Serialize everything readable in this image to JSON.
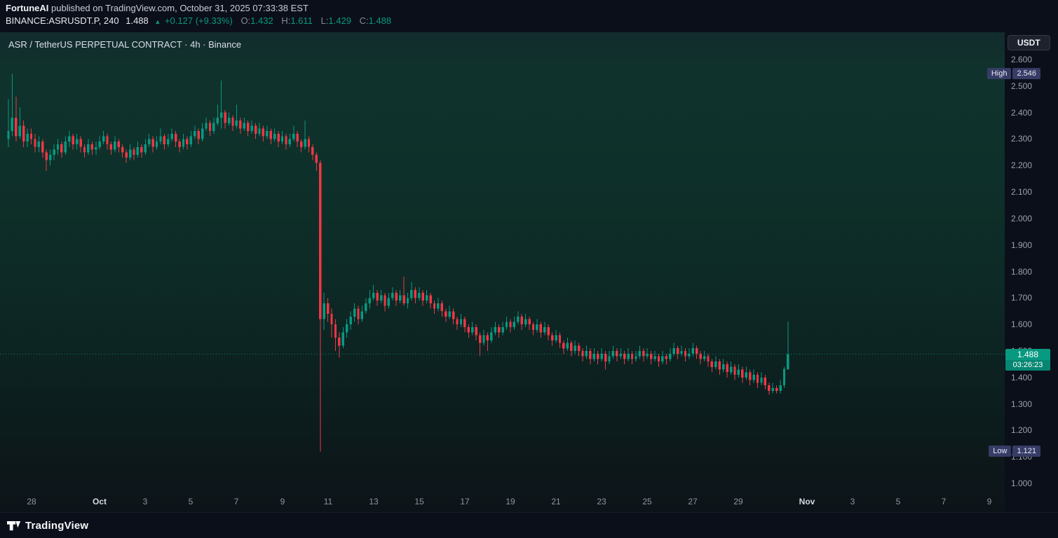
{
  "meta": {
    "publisher": "FortuneAI",
    "published_text": " published on TradingView.com, October 31, 2025 07:33:38 EST"
  },
  "symbol_line": {
    "symbol": "BINANCE:ASRUSDT.P, 240",
    "last": "1.488",
    "arrow": "▲",
    "change": "+0.127 (+9.33%)",
    "ohlc": [
      {
        "label": "O:",
        "value": "1.432"
      },
      {
        "label": "H:",
        "value": "1.611"
      },
      {
        "label": "L:",
        "value": "1.429"
      },
      {
        "label": "C:",
        "value": "1.488"
      }
    ]
  },
  "chart": {
    "title": "ASR / TetherUS PERPETUAL CONTRACT · 4h · Binance",
    "axis_button": "USDT",
    "high_badge": {
      "label": "High",
      "value": "2.546"
    },
    "low_badge": {
      "label": "Low",
      "value": "1.121"
    },
    "last_badge": {
      "price": "1.488",
      "countdown": "03:26:23"
    }
  },
  "footer": {
    "brand": "TradingView"
  },
  "chart_data": {
    "type": "candlestick",
    "symbol": "BINANCE:ASRUSDT.P",
    "exchange": "Binance",
    "interval": "4h",
    "quote": "USDT",
    "last_price": 1.488,
    "range_high": 2.546,
    "range_low": 1.121,
    "ylim": [
      0.966,
      2.703
    ],
    "price_ticks": [
      "2.600",
      "2.500",
      "2.400",
      "2.300",
      "2.200",
      "2.100",
      "2.000",
      "1.900",
      "1.800",
      "1.700",
      "1.600",
      "1.500",
      "1.400",
      "1.300",
      "1.200",
      "1.100",
      "1.000"
    ],
    "time_labels": [
      {
        "text": "28",
        "bar": 6
      },
      {
        "text": "Oct",
        "bar": 24,
        "major": true
      },
      {
        "text": "3",
        "bar": 36
      },
      {
        "text": "5",
        "bar": 48
      },
      {
        "text": "7",
        "bar": 60
      },
      {
        "text": "9",
        "bar": 72
      },
      {
        "text": "11",
        "bar": 84
      },
      {
        "text": "13",
        "bar": 96
      },
      {
        "text": "15",
        "bar": 108
      },
      {
        "text": "17",
        "bar": 120
      },
      {
        "text": "19",
        "bar": 132
      },
      {
        "text": "21",
        "bar": 144
      },
      {
        "text": "23",
        "bar": 156
      },
      {
        "text": "25",
        "bar": 168
      },
      {
        "text": "27",
        "bar": 180
      },
      {
        "text": "29",
        "bar": 192
      },
      {
        "text": "Nov",
        "bar": 210,
        "major": true
      },
      {
        "text": "3",
        "bar": 222
      },
      {
        "text": "5",
        "bar": 234
      },
      {
        "text": "7",
        "bar": 246
      },
      {
        "text": "9",
        "bar": 258
      }
    ],
    "colors": {
      "up": "#089981",
      "down": "#f23645",
      "last_line": "#089981"
    },
    "layout": {
      "left_pad": 12,
      "bar_step": 5.424,
      "total_slots": 262,
      "grid": false,
      "price_axis_side": "right",
      "legend": false
    },
    "ohlc_format": [
      "open",
      "high",
      "low",
      "close"
    ],
    "candles": [
      [
        2.3,
        2.45,
        2.27,
        2.33
      ],
      [
        2.33,
        2.546,
        2.31,
        2.38
      ],
      [
        2.38,
        2.46,
        2.29,
        2.31
      ],
      [
        2.31,
        2.42,
        2.3,
        2.35
      ],
      [
        2.35,
        2.37,
        2.27,
        2.29
      ],
      [
        2.29,
        2.34,
        2.27,
        2.32
      ],
      [
        2.32,
        2.34,
        2.28,
        2.3
      ],
      [
        2.3,
        2.32,
        2.25,
        2.27
      ],
      [
        2.27,
        2.31,
        2.25,
        2.29
      ],
      [
        2.29,
        2.3,
        2.23,
        2.25
      ],
      [
        2.25,
        2.26,
        2.18,
        2.22
      ],
      [
        2.22,
        2.26,
        2.2,
        2.24
      ],
      [
        2.24,
        2.28,
        2.22,
        2.26
      ],
      [
        2.26,
        2.3,
        2.24,
        2.28
      ],
      [
        2.28,
        2.29,
        2.23,
        2.25
      ],
      [
        2.25,
        2.31,
        2.24,
        2.29
      ],
      [
        2.29,
        2.33,
        2.27,
        2.31
      ],
      [
        2.31,
        2.32,
        2.26,
        2.28
      ],
      [
        2.28,
        2.32,
        2.26,
        2.3
      ],
      [
        2.3,
        2.31,
        2.25,
        2.27
      ],
      [
        2.27,
        2.28,
        2.23,
        2.25
      ],
      [
        2.25,
        2.3,
        2.24,
        2.28
      ],
      [
        2.28,
        2.29,
        2.24,
        2.26
      ],
      [
        2.26,
        2.29,
        2.24,
        2.27
      ],
      [
        2.27,
        2.31,
        2.26,
        2.29
      ],
      [
        2.29,
        2.33,
        2.28,
        2.31
      ],
      [
        2.31,
        2.32,
        2.26,
        2.28
      ],
      [
        2.28,
        2.29,
        2.24,
        2.26
      ],
      [
        2.26,
        2.31,
        2.25,
        2.29
      ],
      [
        2.29,
        2.3,
        2.25,
        2.27
      ],
      [
        2.27,
        2.28,
        2.23,
        2.25
      ],
      [
        2.25,
        2.26,
        2.21,
        2.23
      ],
      [
        2.23,
        2.28,
        2.22,
        2.26
      ],
      [
        2.26,
        2.27,
        2.22,
        2.24
      ],
      [
        2.24,
        2.29,
        2.23,
        2.27
      ],
      [
        2.27,
        2.28,
        2.23,
        2.25
      ],
      [
        2.25,
        2.3,
        2.24,
        2.28
      ],
      [
        2.28,
        2.32,
        2.27,
        2.3
      ],
      [
        2.3,
        2.31,
        2.25,
        2.27
      ],
      [
        2.27,
        2.31,
        2.26,
        2.29
      ],
      [
        2.29,
        2.34,
        2.28,
        2.31
      ],
      [
        2.31,
        2.32,
        2.26,
        2.28
      ],
      [
        2.28,
        2.32,
        2.27,
        2.3
      ],
      [
        2.3,
        2.34,
        2.29,
        2.32
      ],
      [
        2.32,
        2.33,
        2.27,
        2.29
      ],
      [
        2.29,
        2.3,
        2.25,
        2.27
      ],
      [
        2.27,
        2.32,
        2.26,
        2.3
      ],
      [
        2.3,
        2.31,
        2.26,
        2.28
      ],
      [
        2.28,
        2.33,
        2.27,
        2.31
      ],
      [
        2.31,
        2.35,
        2.3,
        2.33
      ],
      [
        2.33,
        2.34,
        2.28,
        2.3
      ],
      [
        2.3,
        2.36,
        2.29,
        2.34
      ],
      [
        2.34,
        2.38,
        2.33,
        2.36
      ],
      [
        2.36,
        2.37,
        2.31,
        2.33
      ],
      [
        2.33,
        2.38,
        2.32,
        2.36
      ],
      [
        2.36,
        2.43,
        2.35,
        2.38
      ],
      [
        2.38,
        2.52,
        2.34,
        2.4
      ],
      [
        2.4,
        2.41,
        2.34,
        2.36
      ],
      [
        2.36,
        2.4,
        2.35,
        2.38
      ],
      [
        2.38,
        2.39,
        2.33,
        2.35
      ],
      [
        2.35,
        2.43,
        2.34,
        2.37
      ],
      [
        2.37,
        2.38,
        2.32,
        2.34
      ],
      [
        2.34,
        2.38,
        2.33,
        2.36
      ],
      [
        2.36,
        2.37,
        2.31,
        2.33
      ],
      [
        2.33,
        2.37,
        2.32,
        2.35
      ],
      [
        2.35,
        2.36,
        2.3,
        2.32
      ],
      [
        2.32,
        2.36,
        2.31,
        2.34
      ],
      [
        2.34,
        2.35,
        2.29,
        2.31
      ],
      [
        2.31,
        2.35,
        2.3,
        2.33
      ],
      [
        2.33,
        2.34,
        2.28,
        2.3
      ],
      [
        2.3,
        2.34,
        2.29,
        2.32
      ],
      [
        2.32,
        2.33,
        2.27,
        2.29
      ],
      [
        2.29,
        2.33,
        2.28,
        2.31
      ],
      [
        2.31,
        2.32,
        2.26,
        2.28
      ],
      [
        2.28,
        2.32,
        2.27,
        2.3
      ],
      [
        2.3,
        2.35,
        2.29,
        2.32
      ],
      [
        2.32,
        2.33,
        2.27,
        2.29
      ],
      [
        2.29,
        2.3,
        2.25,
        2.27
      ],
      [
        2.27,
        2.37,
        2.26,
        2.3
      ],
      [
        2.3,
        2.31,
        2.25,
        2.27
      ],
      [
        2.27,
        2.28,
        2.22,
        2.24
      ],
      [
        2.24,
        2.25,
        2.18,
        2.21
      ],
      [
        2.21,
        2.22,
        1.121,
        1.62
      ],
      [
        1.62,
        1.72,
        1.58,
        1.68
      ],
      [
        1.68,
        1.7,
        1.61,
        1.64
      ],
      [
        1.64,
        1.66,
        1.55,
        1.6
      ],
      [
        1.6,
        1.62,
        1.5,
        1.55
      ],
      [
        1.55,
        1.57,
        1.475,
        1.52
      ],
      [
        1.52,
        1.59,
        1.51,
        1.57
      ],
      [
        1.57,
        1.62,
        1.55,
        1.6
      ],
      [
        1.6,
        1.65,
        1.58,
        1.63
      ],
      [
        1.63,
        1.68,
        1.61,
        1.66
      ],
      [
        1.66,
        1.67,
        1.6,
        1.62
      ],
      [
        1.62,
        1.67,
        1.61,
        1.65
      ],
      [
        1.65,
        1.7,
        1.64,
        1.68
      ],
      [
        1.68,
        1.73,
        1.66,
        1.7
      ],
      [
        1.7,
        1.75,
        1.69,
        1.72
      ],
      [
        1.72,
        1.73,
        1.67,
        1.69
      ],
      [
        1.69,
        1.73,
        1.68,
        1.71
      ],
      [
        1.71,
        1.72,
        1.65,
        1.67
      ],
      [
        1.67,
        1.72,
        1.66,
        1.7
      ],
      [
        1.7,
        1.74,
        1.69,
        1.72
      ],
      [
        1.72,
        1.73,
        1.67,
        1.69
      ],
      [
        1.69,
        1.73,
        1.68,
        1.71
      ],
      [
        1.71,
        1.78,
        1.67,
        1.68
      ],
      [
        1.68,
        1.72,
        1.66,
        1.7
      ],
      [
        1.7,
        1.76,
        1.69,
        1.73
      ],
      [
        1.73,
        1.74,
        1.68,
        1.7
      ],
      [
        1.7,
        1.74,
        1.69,
        1.72
      ],
      [
        1.72,
        1.73,
        1.67,
        1.69
      ],
      [
        1.69,
        1.73,
        1.68,
        1.71
      ],
      [
        1.71,
        1.72,
        1.66,
        1.68
      ],
      [
        1.68,
        1.69,
        1.64,
        1.66
      ],
      [
        1.66,
        1.7,
        1.65,
        1.68
      ],
      [
        1.68,
        1.69,
        1.63,
        1.65
      ],
      [
        1.65,
        1.66,
        1.61,
        1.63
      ],
      [
        1.63,
        1.67,
        1.62,
        1.65
      ],
      [
        1.65,
        1.66,
        1.6,
        1.62
      ],
      [
        1.62,
        1.63,
        1.58,
        1.6
      ],
      [
        1.6,
        1.64,
        1.59,
        1.62
      ],
      [
        1.62,
        1.63,
        1.57,
        1.59
      ],
      [
        1.59,
        1.6,
        1.55,
        1.57
      ],
      [
        1.57,
        1.61,
        1.56,
        1.59
      ],
      [
        1.59,
        1.6,
        1.54,
        1.56
      ],
      [
        1.56,
        1.57,
        1.48,
        1.53
      ],
      [
        1.53,
        1.58,
        1.52,
        1.56
      ],
      [
        1.56,
        1.57,
        1.5,
        1.54
      ],
      [
        1.54,
        1.59,
        1.53,
        1.57
      ],
      [
        1.57,
        1.61,
        1.56,
        1.59
      ],
      [
        1.59,
        1.6,
        1.55,
        1.57
      ],
      [
        1.57,
        1.61,
        1.56,
        1.59
      ],
      [
        1.59,
        1.63,
        1.58,
        1.61
      ],
      [
        1.61,
        1.62,
        1.57,
        1.59
      ],
      [
        1.59,
        1.63,
        1.58,
        1.61
      ],
      [
        1.61,
        1.65,
        1.6,
        1.63
      ],
      [
        1.63,
        1.64,
        1.58,
        1.6
      ],
      [
        1.6,
        1.64,
        1.59,
        1.62
      ],
      [
        1.62,
        1.63,
        1.58,
        1.6
      ],
      [
        1.6,
        1.61,
        1.56,
        1.58
      ],
      [
        1.58,
        1.62,
        1.57,
        1.6
      ],
      [
        1.6,
        1.61,
        1.55,
        1.57
      ],
      [
        1.57,
        1.61,
        1.56,
        1.59
      ],
      [
        1.59,
        1.6,
        1.54,
        1.56
      ],
      [
        1.56,
        1.57,
        1.52,
        1.54
      ],
      [
        1.54,
        1.58,
        1.53,
        1.56
      ],
      [
        1.56,
        1.57,
        1.51,
        1.53
      ],
      [
        1.53,
        1.54,
        1.49,
        1.51
      ],
      [
        1.51,
        1.55,
        1.5,
        1.53
      ],
      [
        1.53,
        1.54,
        1.48,
        1.5
      ],
      [
        1.5,
        1.54,
        1.49,
        1.52
      ],
      [
        1.52,
        1.53,
        1.48,
        1.5
      ],
      [
        1.5,
        1.51,
        1.46,
        1.48
      ],
      [
        1.48,
        1.52,
        1.47,
        1.5
      ],
      [
        1.5,
        1.51,
        1.45,
        1.47
      ],
      [
        1.47,
        1.51,
        1.46,
        1.49
      ],
      [
        1.49,
        1.5,
        1.45,
        1.47
      ],
      [
        1.47,
        1.51,
        1.46,
        1.49
      ],
      [
        1.49,
        1.5,
        1.43,
        1.46
      ],
      [
        1.46,
        1.5,
        1.45,
        1.48
      ],
      [
        1.48,
        1.52,
        1.47,
        1.5
      ],
      [
        1.5,
        1.51,
        1.46,
        1.48
      ],
      [
        1.48,
        1.51,
        1.47,
        1.49
      ],
      [
        1.49,
        1.5,
        1.45,
        1.47
      ],
      [
        1.47,
        1.51,
        1.46,
        1.49
      ],
      [
        1.49,
        1.5,
        1.45,
        1.47
      ],
      [
        1.47,
        1.5,
        1.46,
        1.48
      ],
      [
        1.48,
        1.52,
        1.47,
        1.5
      ],
      [
        1.5,
        1.51,
        1.46,
        1.48
      ],
      [
        1.48,
        1.51,
        1.47,
        1.49
      ],
      [
        1.49,
        1.5,
        1.45,
        1.47
      ],
      [
        1.47,
        1.5,
        1.46,
        1.48
      ],
      [
        1.48,
        1.49,
        1.44,
        1.46
      ],
      [
        1.46,
        1.5,
        1.45,
        1.48
      ],
      [
        1.48,
        1.49,
        1.45,
        1.47
      ],
      [
        1.47,
        1.51,
        1.46,
        1.49
      ],
      [
        1.49,
        1.53,
        1.48,
        1.51
      ],
      [
        1.51,
        1.52,
        1.47,
        1.49
      ],
      [
        1.49,
        1.52,
        1.48,
        1.5
      ],
      [
        1.5,
        1.51,
        1.46,
        1.48
      ],
      [
        1.48,
        1.51,
        1.47,
        1.49
      ],
      [
        1.49,
        1.53,
        1.48,
        1.51
      ],
      [
        1.51,
        1.52,
        1.47,
        1.49
      ],
      [
        1.49,
        1.5,
        1.45,
        1.47
      ],
      [
        1.47,
        1.5,
        1.46,
        1.48
      ],
      [
        1.48,
        1.49,
        1.44,
        1.46
      ],
      [
        1.46,
        1.47,
        1.42,
        1.44
      ],
      [
        1.44,
        1.48,
        1.43,
        1.46
      ],
      [
        1.46,
        1.47,
        1.41,
        1.43
      ],
      [
        1.43,
        1.47,
        1.42,
        1.45
      ],
      [
        1.45,
        1.46,
        1.4,
        1.42
      ],
      [
        1.42,
        1.46,
        1.41,
        1.44
      ],
      [
        1.44,
        1.45,
        1.39,
        1.41
      ],
      [
        1.41,
        1.45,
        1.4,
        1.43
      ],
      [
        1.43,
        1.44,
        1.38,
        1.4
      ],
      [
        1.4,
        1.44,
        1.39,
        1.42
      ],
      [
        1.42,
        1.43,
        1.37,
        1.39
      ],
      [
        1.39,
        1.43,
        1.38,
        1.41
      ],
      [
        1.41,
        1.42,
        1.36,
        1.38
      ],
      [
        1.38,
        1.42,
        1.37,
        1.4
      ],
      [
        1.4,
        1.41,
        1.355,
        1.37
      ],
      [
        1.37,
        1.38,
        1.335,
        1.35
      ],
      [
        1.35,
        1.38,
        1.34,
        1.36
      ],
      [
        1.36,
        1.37,
        1.34,
        1.35
      ],
      [
        1.35,
        1.39,
        1.34,
        1.37
      ],
      [
        1.37,
        1.44,
        1.36,
        1.432
      ],
      [
        1.432,
        1.611,
        1.429,
        1.488
      ]
    ]
  }
}
